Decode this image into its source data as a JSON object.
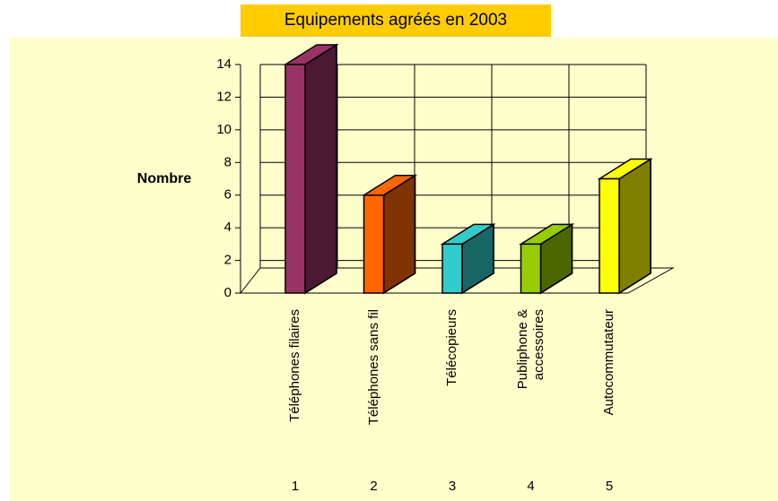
{
  "chart_data": {
    "type": "bar3d",
    "title": "Equipements agréés en 2003",
    "y_label": "Nombre",
    "categories": [
      "Téléphones filaires",
      "Téléphones sans fil",
      "Télécopieurs",
      "Publiphone & accessoires",
      "Autocommutateur"
    ],
    "index_labels": [
      1,
      2,
      3,
      4,
      5
    ],
    "values": [
      14,
      6,
      3,
      3,
      7
    ],
    "colors": [
      "#993366",
      "#ff6600",
      "#33cccc",
      "#99cc00",
      "#ffff00"
    ],
    "ylim": [
      0,
      14
    ],
    "yticks": [
      0,
      2,
      4,
      6,
      8,
      10,
      12,
      14
    ],
    "grid": true
  }
}
